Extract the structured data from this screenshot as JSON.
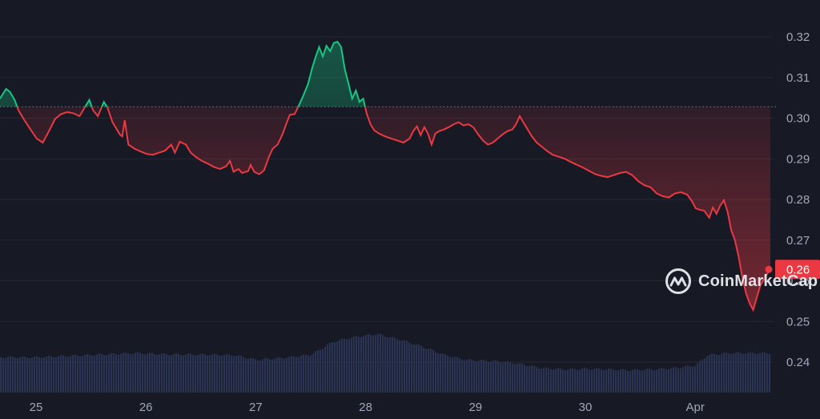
{
  "chart_data": {
    "type": "line",
    "x_ticks": [
      "25",
      "26",
      "27",
      "28",
      "29",
      "30",
      "Apr"
    ],
    "y_ticks": [
      "0.32",
      "0.31",
      "0.30",
      "0.29",
      "0.28",
      "0.27",
      "0.26",
      "0.25",
      "0.24"
    ],
    "ylim": [
      0.2335,
      0.3248
    ],
    "reference_price": 0.3028,
    "current_price_label": "0.26",
    "grid": true,
    "colors": {
      "background": "#171924",
      "up": "#16c784",
      "down": "#ea3943",
      "volume": "#2b3352",
      "grid": "#252834",
      "tick_text": "#a1a7bb",
      "price_tag_text": "#ffffff"
    },
    "price": [
      [
        0.0,
        0.3048
      ],
      [
        0.02,
        0.3058
      ],
      [
        0.05,
        0.3072
      ],
      [
        0.08,
        0.3065
      ],
      [
        0.12,
        0.3045
      ],
      [
        0.15,
        0.302
      ],
      [
        0.2,
        0.2995
      ],
      [
        0.25,
        0.2972
      ],
      [
        0.3,
        0.295
      ],
      [
        0.35,
        0.294
      ],
      [
        0.4,
        0.2968
      ],
      [
        0.45,
        0.2998
      ],
      [
        0.5,
        0.301
      ],
      [
        0.55,
        0.3015
      ],
      [
        0.6,
        0.3012
      ],
      [
        0.65,
        0.3005
      ],
      [
        0.7,
        0.303
      ],
      [
        0.73,
        0.3045
      ],
      [
        0.76,
        0.302
      ],
      [
        0.8,
        0.3005
      ],
      [
        0.85,
        0.304
      ],
      [
        0.88,
        0.3025
      ],
      [
        0.92,
        0.299
      ],
      [
        0.95,
        0.2975
      ],
      [
        0.98,
        0.296
      ],
      [
        1.0,
        0.2955
      ],
      [
        1.02,
        0.2995
      ],
      [
        1.05,
        0.2935
      ],
      [
        1.1,
        0.2925
      ],
      [
        1.15,
        0.2918
      ],
      [
        1.2,
        0.2912
      ],
      [
        1.25,
        0.291
      ],
      [
        1.3,
        0.2915
      ],
      [
        1.35,
        0.292
      ],
      [
        1.4,
        0.2935
      ],
      [
        1.43,
        0.2915
      ],
      [
        1.47,
        0.2942
      ],
      [
        1.52,
        0.2935
      ],
      [
        1.56,
        0.2915
      ],
      [
        1.6,
        0.2905
      ],
      [
        1.65,
        0.2895
      ],
      [
        1.7,
        0.2888
      ],
      [
        1.75,
        0.288
      ],
      [
        1.8,
        0.2875
      ],
      [
        1.85,
        0.2882
      ],
      [
        1.88,
        0.2895
      ],
      [
        1.91,
        0.2868
      ],
      [
        1.95,
        0.2875
      ],
      [
        1.98,
        0.2865
      ],
      [
        2.03,
        0.287
      ],
      [
        2.05,
        0.2885
      ],
      [
        2.08,
        0.2868
      ],
      [
        2.12,
        0.2862
      ],
      [
        2.16,
        0.2872
      ],
      [
        2.2,
        0.2905
      ],
      [
        2.23,
        0.2925
      ],
      [
        2.27,
        0.2935
      ],
      [
        2.31,
        0.296
      ],
      [
        2.34,
        0.2985
      ],
      [
        2.37,
        0.3008
      ],
      [
        2.41,
        0.301
      ],
      [
        2.45,
        0.3035
      ],
      [
        2.48,
        0.3055
      ],
      [
        2.52,
        0.3085
      ],
      [
        2.55,
        0.312
      ],
      [
        2.58,
        0.315
      ],
      [
        2.61,
        0.3175
      ],
      [
        2.64,
        0.3152
      ],
      [
        2.67,
        0.3178
      ],
      [
        2.7,
        0.3165
      ],
      [
        2.73,
        0.3185
      ],
      [
        2.76,
        0.3188
      ],
      [
        2.79,
        0.3175
      ],
      [
        2.82,
        0.312
      ],
      [
        2.85,
        0.3085
      ],
      [
        2.88,
        0.3048
      ],
      [
        2.91,
        0.3068
      ],
      [
        2.94,
        0.304
      ],
      [
        2.97,
        0.3048
      ],
      [
        3.0,
        0.301
      ],
      [
        3.03,
        0.2985
      ],
      [
        3.06,
        0.297
      ],
      [
        3.1,
        0.2962
      ],
      [
        3.15,
        0.2955
      ],
      [
        3.2,
        0.295
      ],
      [
        3.25,
        0.2945
      ],
      [
        3.3,
        0.294
      ],
      [
        3.35,
        0.295
      ],
      [
        3.38,
        0.2968
      ],
      [
        3.41,
        0.298
      ],
      [
        3.44,
        0.2958
      ],
      [
        3.47,
        0.2978
      ],
      [
        3.5,
        0.2962
      ],
      [
        3.53,
        0.2935
      ],
      [
        3.56,
        0.2962
      ],
      [
        3.59,
        0.2968
      ],
      [
        3.63,
        0.2972
      ],
      [
        3.67,
        0.2978
      ],
      [
        3.71,
        0.2985
      ],
      [
        3.75,
        0.299
      ],
      [
        3.79,
        0.2982
      ],
      [
        3.83,
        0.2985
      ],
      [
        3.87,
        0.2978
      ],
      [
        3.91,
        0.296
      ],
      [
        3.95,
        0.2945
      ],
      [
        3.99,
        0.2935
      ],
      [
        4.03,
        0.294
      ],
      [
        4.07,
        0.295
      ],
      [
        4.11,
        0.296
      ],
      [
        4.15,
        0.2968
      ],
      [
        4.19,
        0.2972
      ],
      [
        4.22,
        0.2985
      ],
      [
        4.25,
        0.3005
      ],
      [
        4.28,
        0.299
      ],
      [
        4.31,
        0.2975
      ],
      [
        4.35,
        0.2955
      ],
      [
        4.39,
        0.294
      ],
      [
        4.43,
        0.293
      ],
      [
        4.47,
        0.292
      ],
      [
        4.52,
        0.291
      ],
      [
        4.57,
        0.2905
      ],
      [
        4.62,
        0.29
      ],
      [
        4.67,
        0.2892
      ],
      [
        4.72,
        0.2885
      ],
      [
        4.77,
        0.2878
      ],
      [
        4.82,
        0.287
      ],
      [
        4.87,
        0.2862
      ],
      [
        4.92,
        0.2858
      ],
      [
        4.97,
        0.2855
      ],
      [
        5.02,
        0.286
      ],
      [
        5.07,
        0.2865
      ],
      [
        5.12,
        0.2868
      ],
      [
        5.17,
        0.286
      ],
      [
        5.22,
        0.2845
      ],
      [
        5.27,
        0.2835
      ],
      [
        5.32,
        0.283
      ],
      [
        5.37,
        0.2815
      ],
      [
        5.42,
        0.2808
      ],
      [
        5.47,
        0.2805
      ],
      [
        5.52,
        0.2815
      ],
      [
        5.57,
        0.2818
      ],
      [
        5.62,
        0.2812
      ],
      [
        5.66,
        0.2795
      ],
      [
        5.69,
        0.2778
      ],
      [
        5.72,
        0.2775
      ],
      [
        5.76,
        0.2772
      ],
      [
        5.8,
        0.2755
      ],
      [
        5.83,
        0.278
      ],
      [
        5.86,
        0.2765
      ],
      [
        5.89,
        0.2785
      ],
      [
        5.92,
        0.2798
      ],
      [
        5.95,
        0.277
      ],
      [
        5.98,
        0.2725
      ],
      [
        6.01,
        0.27
      ],
      [
        6.04,
        0.266
      ],
      [
        6.07,
        0.261
      ],
      [
        6.1,
        0.257
      ],
      [
        6.13,
        0.2545
      ],
      [
        6.16,
        0.2528
      ],
      [
        6.19,
        0.256
      ],
      [
        6.22,
        0.259
      ],
      [
        6.25,
        0.2605
      ],
      [
        6.28,
        0.262
      ],
      [
        6.3,
        0.2628
      ]
    ],
    "volume": [
      [
        0.0,
        0.52
      ],
      [
        0.3,
        0.54
      ],
      [
        0.6,
        0.56
      ],
      [
        0.9,
        0.58
      ],
      [
        1.2,
        0.56
      ],
      [
        1.5,
        0.56
      ],
      [
        1.8,
        0.55
      ],
      [
        2.0,
        0.48
      ],
      [
        2.3,
        0.52
      ],
      [
        2.5,
        0.56
      ],
      [
        2.7,
        0.75
      ],
      [
        2.9,
        0.82
      ],
      [
        3.1,
        0.86
      ],
      [
        3.3,
        0.78
      ],
      [
        3.5,
        0.68
      ],
      [
        3.7,
        0.56
      ],
      [
        3.9,
        0.48
      ],
      [
        4.2,
        0.46
      ],
      [
        4.4,
        0.42
      ],
      [
        4.6,
        0.36
      ],
      [
        4.8,
        0.34
      ],
      [
        5.0,
        0.35
      ],
      [
        5.2,
        0.34
      ],
      [
        5.4,
        0.33
      ],
      [
        5.6,
        0.34
      ],
      [
        5.8,
        0.36
      ],
      [
        6.0,
        0.4
      ],
      [
        6.1,
        0.55
      ],
      [
        6.3,
        0.58
      ]
    ],
    "volume_note": "volume values are relative heights (0-1) since no volume axis is printed"
  },
  "brand": {
    "watermark": "CoinMarketCap",
    "logo_icon": "coinmarketcap-logo-icon"
  }
}
